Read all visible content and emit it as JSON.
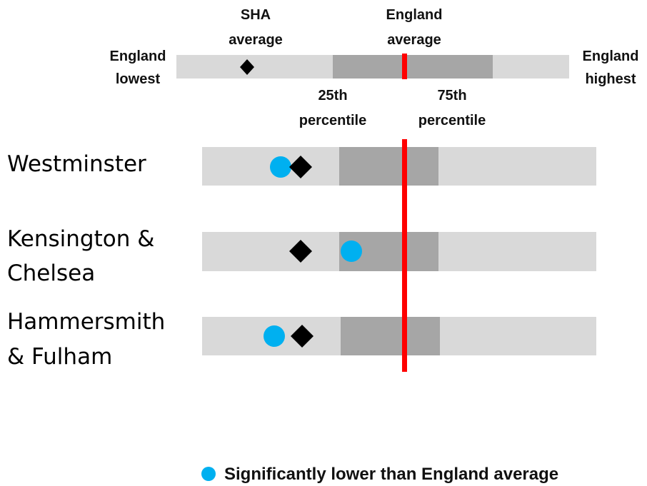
{
  "key": {
    "sha_average": [
      "SHA",
      "average"
    ],
    "england_average": [
      "England",
      "average"
    ],
    "england_lowest": [
      "England",
      "lowest"
    ],
    "england_highest": [
      "England",
      "highest"
    ],
    "percentile_25": [
      "25th",
      "percentile"
    ],
    "percentile_75": [
      "75th",
      "percentile"
    ]
  },
  "areas": [
    [
      "Westminster"
    ],
    [
      "Kensington &",
      "Chelsea"
    ],
    [
      "Hammersmith",
      "& Fulham"
    ]
  ],
  "legend": {
    "significantly_lower": "Significantly lower than England average"
  }
}
